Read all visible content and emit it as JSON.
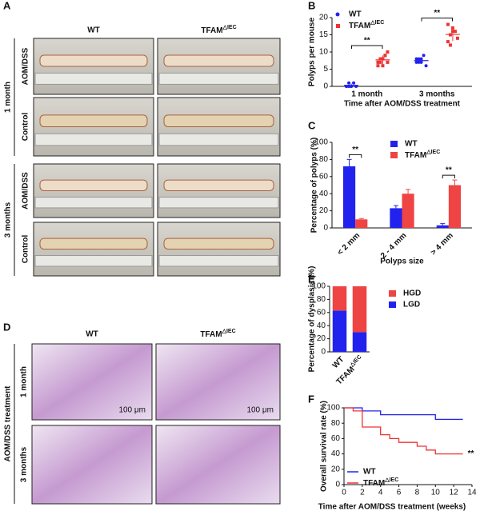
{
  "panel_a": {
    "panel": "A",
    "col_labels": [
      "WT",
      "TFAM△IEC"
    ],
    "group_labels": [
      "1 month",
      "3 months"
    ],
    "row_labels": [
      "AOM/DSS",
      "Control",
      "AOM/DSS",
      "Control"
    ]
  },
  "panel_d": {
    "panel": "D",
    "col_labels": [
      "WT",
      "TFAM△IEC"
    ],
    "side_label": "AOM/DSS treatment",
    "row_labels": [
      "1 month",
      "3 months"
    ],
    "scale_bar": "100 μm"
  },
  "chart_data": [
    {
      "type": "dot",
      "panel": "B",
      "ylabel": "Polyps per mouse",
      "xlabel": "Time after AOM/DSS treatment",
      "categories": [
        "1 month",
        "3 months"
      ],
      "ylim": [
        0,
        20
      ],
      "yticks": [
        0,
        5,
        10,
        15,
        20
      ],
      "annotations": [
        "**",
        "**"
      ],
      "series": [
        {
          "name": "WT",
          "color": "#2222ee",
          "marker": "circle",
          "values": [
            [
              0,
              0,
              0,
              1,
              0,
              0,
              1,
              0
            ],
            [
              7,
              8,
              7,
              9,
              6,
              8,
              7,
              8
            ]
          ],
          "mean": [
            0.3,
            7.5
          ],
          "sd": [
            0.5,
            0.9
          ]
        },
        {
          "name": "TFAM△IEC",
          "color": "#ee3333",
          "marker": "square",
          "values": [
            [
              6,
              7,
              8,
              9,
              10,
              7,
              8,
              6,
              9,
              7
            ],
            [
              13,
              15,
              17,
              16,
              14,
              18,
              12,
              16
            ]
          ],
          "mean": [
            7.7,
            15.1
          ],
          "sd": [
            1.3,
            1.9
          ]
        }
      ]
    },
    {
      "type": "bar",
      "panel": "C",
      "ylabel": "Percentage of polyps (%)",
      "xlabel": "Polyps size",
      "categories": [
        "< 2 mm",
        "2 - 4 mm",
        "> 4 mm"
      ],
      "ylim": [
        0,
        100
      ],
      "yticks": [
        0,
        20,
        40,
        60,
        80,
        100
      ],
      "annotations": [
        "**",
        null,
        "**"
      ],
      "series": [
        {
          "name": "WT",
          "color": "#2222ee",
          "values": [
            72,
            23,
            3
          ],
          "errors": [
            8,
            3,
            2
          ]
        },
        {
          "name": "TFAM△IEC",
          "color": "#ee4444",
          "values": [
            10,
            40,
            50
          ],
          "errors": [
            1,
            5,
            6
          ]
        }
      ]
    },
    {
      "type": "stacked",
      "panel": "E",
      "ylabel": "Percentage of dysplasia (%)",
      "categories": [
        "WT",
        "TFAM△IEC"
      ],
      "ylim": [
        0,
        100
      ],
      "yticks": [
        0,
        20,
        40,
        60,
        80,
        100
      ],
      "series": [
        {
          "name": "LGD",
          "color": "#2222ee",
          "values": [
            63,
            30
          ]
        },
        {
          "name": "HGD",
          "color": "#ee4444",
          "values": [
            37,
            70
          ]
        }
      ]
    },
    {
      "type": "step",
      "panel": "F",
      "ylabel": "Overall survival rate (%)",
      "xlabel": "Time after AOM/DSS treatment (weeks)",
      "xlim": [
        0,
        14
      ],
      "xticks": [
        0,
        2,
        4,
        6,
        8,
        10,
        12,
        14
      ],
      "ylim": [
        0,
        100
      ],
      "yticks": [
        0,
        20,
        40,
        60,
        80,
        100
      ],
      "annotation": "**",
      "series": [
        {
          "name": "WT",
          "color": "#2222ee",
          "x": [
            0,
            2,
            2,
            4,
            4,
            10,
            10,
            13
          ],
          "y": [
            100,
            100,
            96,
            96,
            91,
            91,
            85,
            85
          ]
        },
        {
          "name": "TFAM△IEC",
          "color": "#ee3333",
          "x": [
            0,
            1,
            1,
            2,
            2,
            4,
            4,
            5,
            5,
            6,
            6,
            8,
            8,
            9,
            9,
            10,
            10,
            12,
            12,
            13
          ],
          "y": [
            100,
            100,
            96,
            96,
            75,
            75,
            65,
            65,
            60,
            60,
            55,
            55,
            50,
            50,
            45,
            45,
            40,
            40,
            40,
            40
          ]
        }
      ]
    }
  ]
}
